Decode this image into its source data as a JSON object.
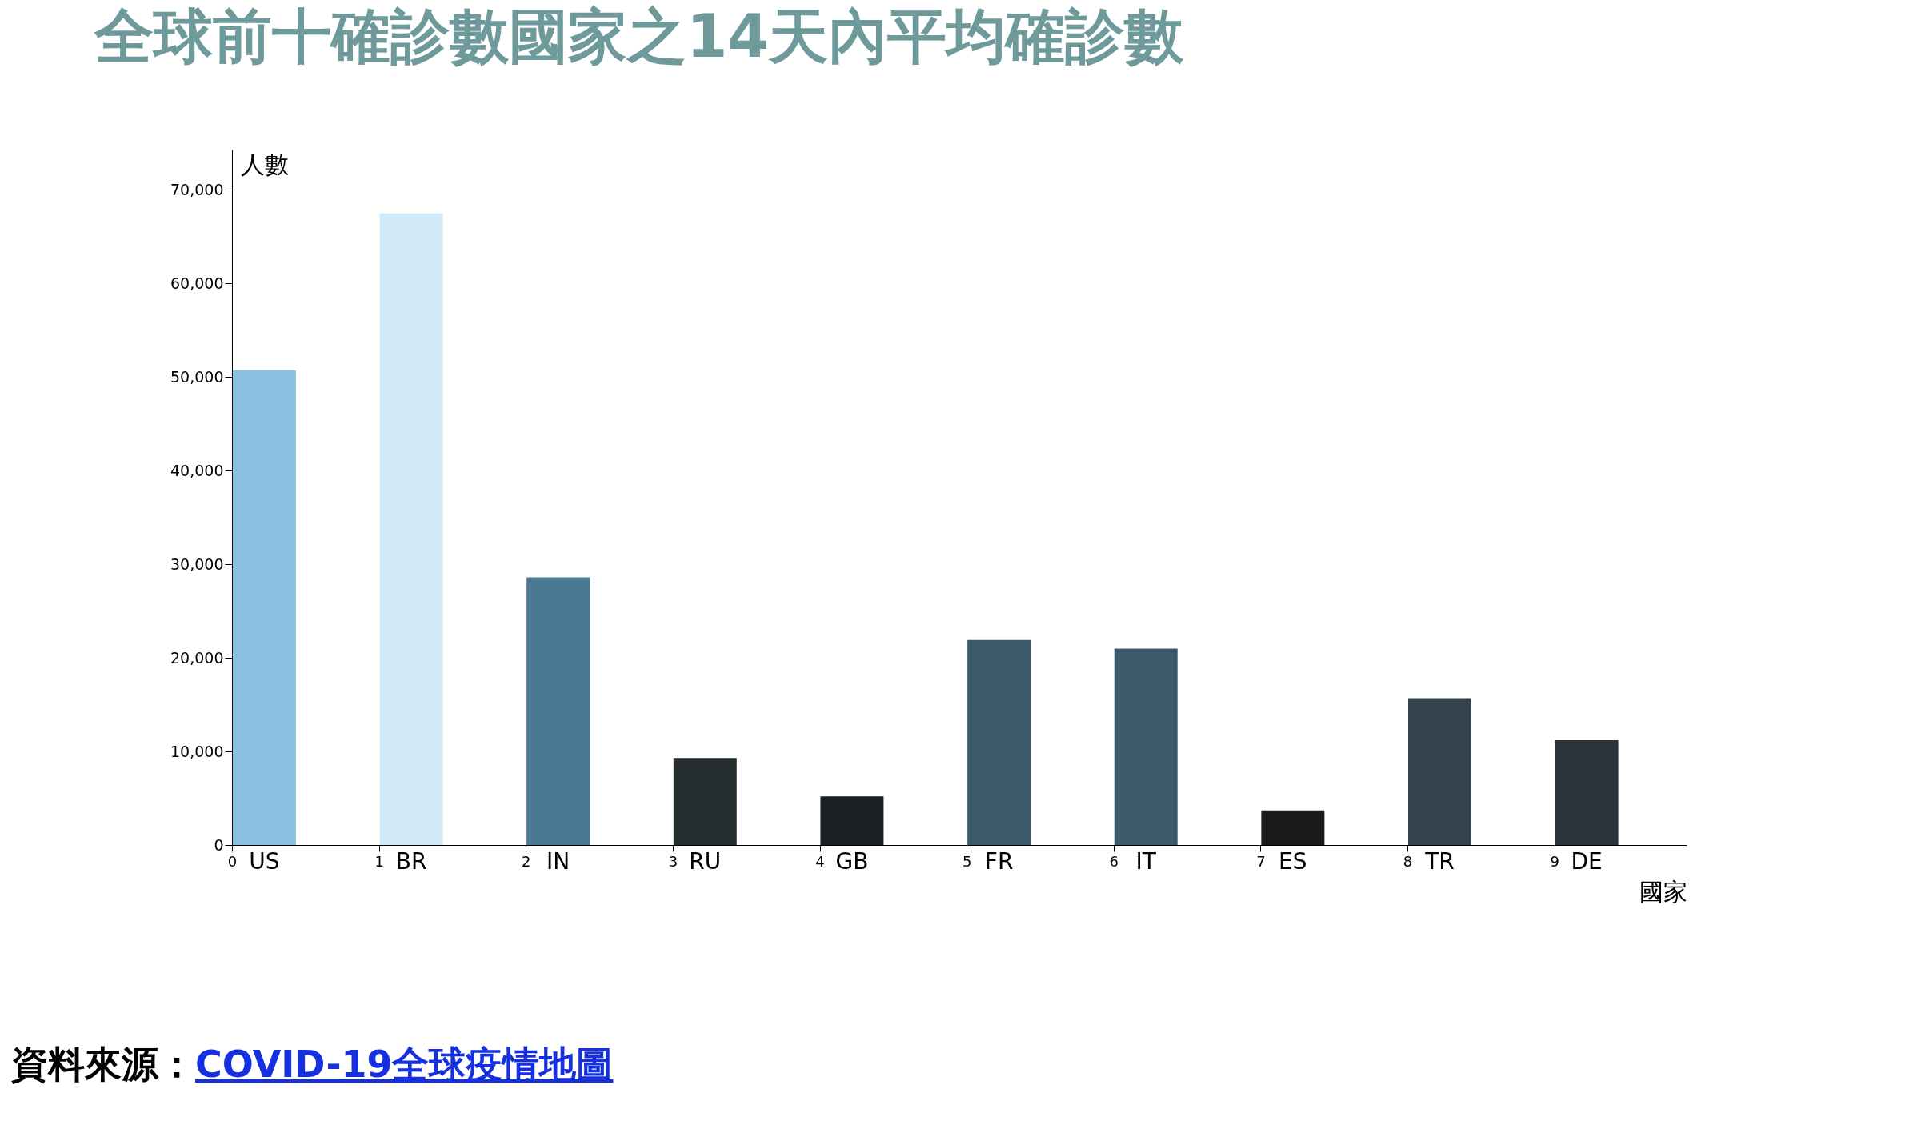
{
  "chart_data": {
    "type": "bar",
    "title": "全球前十確診數國家之14天內平均確診數",
    "xlabel": "國家",
    "ylabel": "人數",
    "x": [
      0.22,
      1.22,
      2.22,
      3.22,
      4.22,
      5.22,
      6.22,
      7.22,
      8.22,
      9.22
    ],
    "values": [
      50700,
      67500,
      28600,
      9300,
      5200,
      21900,
      21000,
      3700,
      15700,
      11200
    ],
    "colors": [
      "#8bbfe0",
      "#d4e9f7",
      "#4b7892",
      "#262d31",
      "#1c2022",
      "#3d5a6c",
      "#3d5a6b",
      "#1a1b1d",
      "#33434e",
      "#2b3239"
    ],
    "xlim": [
      0,
      9.9
    ],
    "xticks": [
      0,
      1,
      2,
      3,
      4,
      5,
      6,
      7,
      8,
      9
    ],
    "ylim": [
      0,
      74300
    ],
    "yticks": [
      0,
      {
        "value": 10000,
        "label": "10,000"
      },
      {
        "value": 20000,
        "label": "20,000"
      },
      {
        "value": 30000,
        "label": "30,000"
      },
      {
        "value": 40000,
        "label": "40,000"
      },
      {
        "value": 50000,
        "label": "50,000"
      },
      {
        "value": 60000,
        "label": "60,000"
      },
      {
        "value": 70000,
        "label": "70,000"
      }
    ],
    "grid": false,
    "legend": false,
    "annotations": [
      "US",
      "BR",
      "IN",
      "RU",
      "GB",
      "FR",
      "IT",
      "ES",
      "TR",
      "DE",
      "資料來源：COVID-19全球疫情地圖"
    ]
  }
}
